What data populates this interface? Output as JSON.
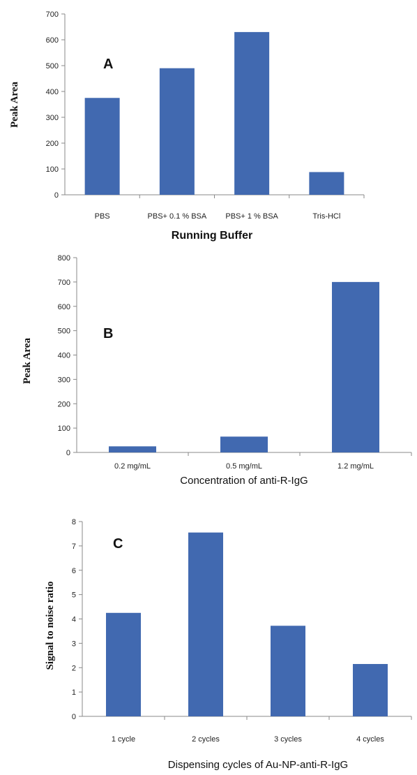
{
  "bar_color": "#4169b0",
  "chart_data": [
    {
      "type": "bar",
      "panel_label": "A",
      "categories": [
        "PBS",
        "PBS+ 0.1 % BSA",
        "PBS+ 1 % BSA",
        "Tris-HCl"
      ],
      "values": [
        375,
        490,
        630,
        88
      ],
      "xlabel": "Running Buffer",
      "ylabel": "Peak Area",
      "ylim": [
        0,
        700
      ],
      "yticks": [
        "0",
        "100",
        "200",
        "300",
        "400",
        "500",
        "600",
        "700"
      ]
    },
    {
      "type": "bar",
      "panel_label": "B",
      "categories": [
        "0.2 mg/mL",
        "0.5 mg/mL",
        "1.2 mg/mL"
      ],
      "values": [
        25,
        65,
        700
      ],
      "xlabel": "Concentration of anti-R-IgG",
      "ylabel": "Peak Area",
      "ylim": [
        0,
        800
      ],
      "yticks": [
        "0",
        "100",
        "200",
        "300",
        "400",
        "500",
        "600",
        "700",
        "800"
      ]
    },
    {
      "type": "bar",
      "panel_label": "C",
      "categories": [
        "1 cycle",
        "2 cycles",
        "3 cycles",
        "4 cycles"
      ],
      "values": [
        4.25,
        7.55,
        3.72,
        2.15
      ],
      "xlabel": "Dispensing cycles of Au-NP-anti-R-IgG",
      "ylabel": "Signal to noise ratio",
      "ylim": [
        0,
        8
      ],
      "yticks": [
        "0",
        "1",
        "2",
        "3",
        "4",
        "5",
        "6",
        "7",
        "8"
      ]
    }
  ]
}
